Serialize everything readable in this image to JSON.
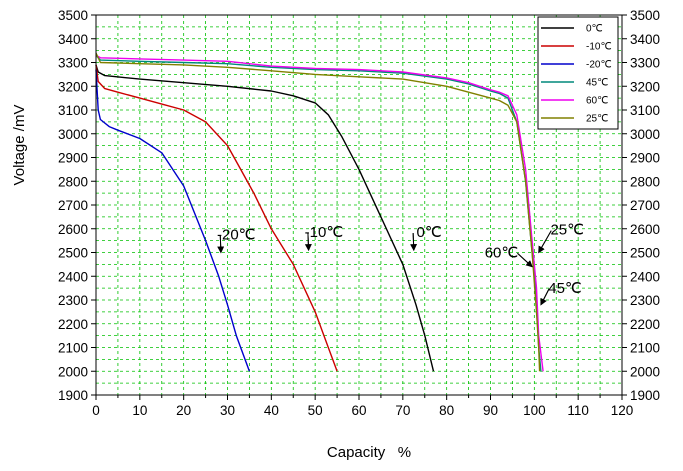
{
  "chart_data": {
    "type": "line",
    "xlabel": "Capacity   %",
    "ylabel": "Voltage /mV",
    "xlim": [
      0,
      120
    ],
    "ylim": [
      1900,
      3500
    ],
    "x_ticks": [
      0,
      10,
      20,
      30,
      40,
      50,
      60,
      70,
      80,
      90,
      100,
      110,
      120
    ],
    "y_ticks": [
      1900,
      2000,
      2100,
      2200,
      2300,
      2400,
      2500,
      2600,
      2700,
      2800,
      2900,
      3000,
      3100,
      3200,
      3300,
      3400,
      3500
    ],
    "grid": true,
    "legend_position": "top-right",
    "series": [
      {
        "name": "0℃",
        "color": "#000000",
        "x": [
          0,
          0.5,
          2,
          10,
          20,
          30,
          40,
          45,
          50,
          53,
          56,
          60,
          65,
          70,
          73,
          75,
          77
        ],
        "y": [
          3290,
          3260,
          3245,
          3230,
          3215,
          3200,
          3180,
          3160,
          3130,
          3080,
          2990,
          2850,
          2650,
          2450,
          2280,
          2150,
          2000
        ]
      },
      {
        "name": "-10℃",
        "color": "#cc0000",
        "x": [
          0,
          0.5,
          2,
          5,
          10,
          15,
          20,
          25,
          30,
          33,
          36,
          40,
          45,
          50,
          53,
          55
        ],
        "y": [
          3290,
          3220,
          3190,
          3175,
          3150,
          3125,
          3100,
          3050,
          2950,
          2850,
          2750,
          2600,
          2450,
          2250,
          2100,
          2000
        ]
      },
      {
        "name": "-20℃",
        "color": "#0000cc",
        "x": [
          0,
          0.5,
          1,
          3,
          5,
          10,
          15,
          20,
          25,
          28,
          30,
          32,
          35
        ],
        "y": [
          3270,
          3100,
          3060,
          3030,
          3015,
          2980,
          2920,
          2780,
          2550,
          2400,
          2280,
          2150,
          2000
        ]
      },
      {
        "name": "45℃",
        "color": "#00897b",
        "x": [
          0,
          1,
          10,
          20,
          30,
          40,
          50,
          60,
          70,
          80,
          85,
          90,
          92,
          94,
          96,
          98,
          99.5,
          100.5,
          101,
          101.5
        ],
        "y": [
          3330,
          3310,
          3305,
          3300,
          3295,
          3280,
          3270,
          3265,
          3255,
          3230,
          3210,
          3180,
          3170,
          3150,
          3050,
          2800,
          2500,
          2300,
          2100,
          2000
        ]
      },
      {
        "name": "60℃",
        "color": "#ee00ee",
        "x": [
          0,
          1,
          10,
          20,
          30,
          40,
          50,
          60,
          70,
          80,
          85,
          90,
          92,
          94,
          96,
          98,
          99.5,
          100.5,
          101,
          102
        ],
        "y": [
          3330,
          3320,
          3315,
          3310,
          3305,
          3285,
          3275,
          3270,
          3260,
          3235,
          3215,
          3185,
          3175,
          3160,
          3080,
          2850,
          2550,
          2350,
          2150,
          2000
        ]
      },
      {
        "name": "25℃",
        "color": "#808000",
        "x": [
          0,
          1,
          10,
          20,
          30,
          40,
          50,
          60,
          70,
          80,
          85,
          90,
          92,
          94,
          96,
          98,
          99.5,
          100.5,
          101,
          101.2
        ],
        "y": [
          3340,
          3300,
          3295,
          3290,
          3280,
          3265,
          3250,
          3240,
          3230,
          3200,
          3175,
          3150,
          3140,
          3120,
          3050,
          2800,
          2500,
          2250,
          2100,
          2000
        ]
      }
    ],
    "annotations": [
      {
        "text": "-20℃",
        "x": 32,
        "y": 2555,
        "arrow_x": 28.5,
        "arrow_y": 2500
      },
      {
        "text": "-10℃",
        "x": 52,
        "y": 2565,
        "arrow_x": 48.5,
        "arrow_y": 2510
      },
      {
        "text": "0℃",
        "x": 76,
        "y": 2565,
        "arrow_x": 72.5,
        "arrow_y": 2510
      },
      {
        "text": "25℃",
        "x": 107.5,
        "y": 2575,
        "arrow_x": 101,
        "arrow_y": 2500
      },
      {
        "text": "60℃",
        "x": 92.5,
        "y": 2480,
        "arrow_x": 99.5,
        "arrow_y": 2440
      },
      {
        "text": "45℃",
        "x": 107,
        "y": 2330,
        "arrow_x": 101.5,
        "arrow_y": 2280
      }
    ]
  }
}
